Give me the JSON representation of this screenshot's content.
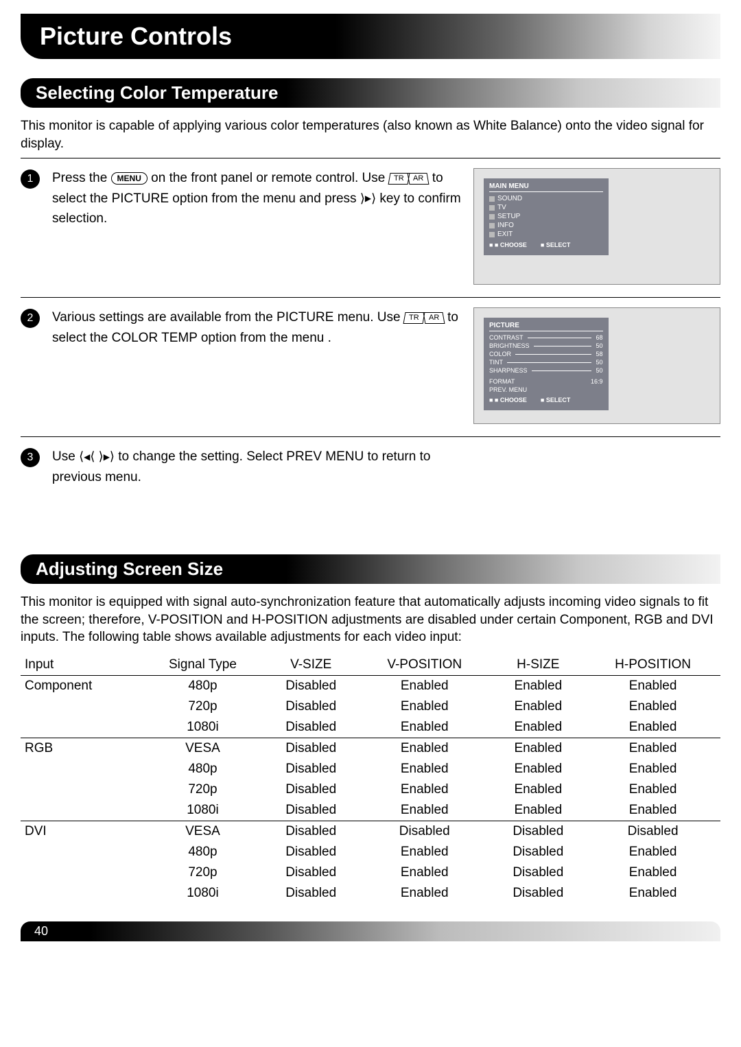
{
  "page": {
    "title": "Picture Controls",
    "page_number": "40"
  },
  "section1": {
    "heading": "Selecting Color Temperature",
    "intro": "This monitor is capable of applying various color temperatures (also known as White Balance) onto the video signal for display.",
    "steps": [
      {
        "num": "1",
        "pre": "Press the ",
        "btn1": "MENU",
        "mid1": " on the front panel or remote control.  Use ",
        "btn2a": "TR",
        "btn2b": "AR",
        "mid2": " to select the PICTURE option from the menu and press ",
        "btn3": "▶",
        "post": " key to confirm selection."
      },
      {
        "num": "2",
        "pre": "Various settings are available from the PICTURE menu.  Use ",
        "btn2a": "TR",
        "btn2b": "AR",
        "post": " to select the COLOR TEMP option from the menu ."
      },
      {
        "num": "3",
        "pre": "Use ",
        "btnL": "◀",
        "btnR": "▶",
        "post": " to change the setting.  Select PREV MENU to return to previous menu."
      }
    ],
    "osd1": {
      "title": "MAIN MENU",
      "items": [
        "SOUND",
        "TV",
        "SETUP",
        "INFO",
        "EXIT"
      ],
      "footer_choose": "■ ■ CHOOSE",
      "footer_select": "■ SELECT"
    },
    "osd2": {
      "title": "PICTURE",
      "rows": [
        {
          "label": "CONTRAST",
          "val": "68"
        },
        {
          "label": "BRIGHTNESS",
          "val": "50"
        },
        {
          "label": "COLOR",
          "val": "58"
        },
        {
          "label": "TINT",
          "val": "50"
        },
        {
          "label": "SHARPNESS",
          "val": "50"
        }
      ],
      "format_label": "FORMAT",
      "format_val": "16:9",
      "prev": "PREV. MENU",
      "footer_choose": "■ ■ CHOOSE",
      "footer_select": "■ SELECT"
    }
  },
  "section2": {
    "heading": "Adjusting Screen Size",
    "intro": "This monitor is equipped with signal auto-synchronization feature that automatically adjusts incoming video signals to fit the screen; therefore, V-POSITION and H-POSITION adjustments are disabled under certain Component, RGB and DVI inputs. The following table shows available adjustments for each video input:",
    "columns": [
      "Input",
      "Signal Type",
      "V-SIZE",
      "V-POSITION",
      "H-SIZE",
      "H-POSITION"
    ],
    "groups": [
      {
        "input": "Component",
        "rows": [
          [
            "480p",
            "Disabled",
            "Enabled",
            "Enabled",
            "Enabled"
          ],
          [
            "720p",
            "Disabled",
            "Enabled",
            "Enabled",
            "Enabled"
          ],
          [
            "1080i",
            "Disabled",
            "Enabled",
            "Enabled",
            "Enabled"
          ]
        ]
      },
      {
        "input": "RGB",
        "rows": [
          [
            "VESA",
            "Disabled",
            "Enabled",
            "Enabled",
            "Enabled"
          ],
          [
            "480p",
            "Disabled",
            "Enabled",
            "Enabled",
            "Enabled"
          ],
          [
            "720p",
            "Disabled",
            "Enabled",
            "Enabled",
            "Enabled"
          ],
          [
            "1080i",
            "Disabled",
            "Enabled",
            "Enabled",
            "Enabled"
          ]
        ]
      },
      {
        "input": "DVI",
        "rows": [
          [
            "VESA",
            "Disabled",
            "Disabled",
            "Disabled",
            "Disabled"
          ],
          [
            "480p",
            "Disabled",
            "Enabled",
            "Disabled",
            "Enabled"
          ],
          [
            "720p",
            "Disabled",
            "Enabled",
            "Disabled",
            "Enabled"
          ],
          [
            "1080i",
            "Disabled",
            "Enabled",
            "Disabled",
            "Enabled"
          ]
        ]
      }
    ]
  }
}
